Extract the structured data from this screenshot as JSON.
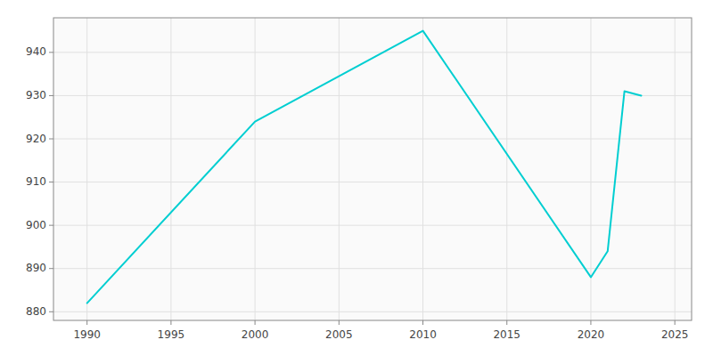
{
  "chart_data": {
    "type": "line",
    "x": [
      1990,
      2000,
      2010,
      2020,
      2021,
      2022,
      2023
    ],
    "values": [
      882,
      924,
      945,
      888,
      894,
      931,
      930
    ],
    "color": "#00CED1",
    "xlim": [
      1988,
      2026
    ],
    "ylim": [
      878,
      948
    ],
    "xticks": [
      1990,
      1995,
      2000,
      2005,
      2010,
      2015,
      2020,
      2025
    ],
    "yticks": [
      880,
      890,
      900,
      910,
      920,
      930,
      940
    ],
    "grid": true
  }
}
